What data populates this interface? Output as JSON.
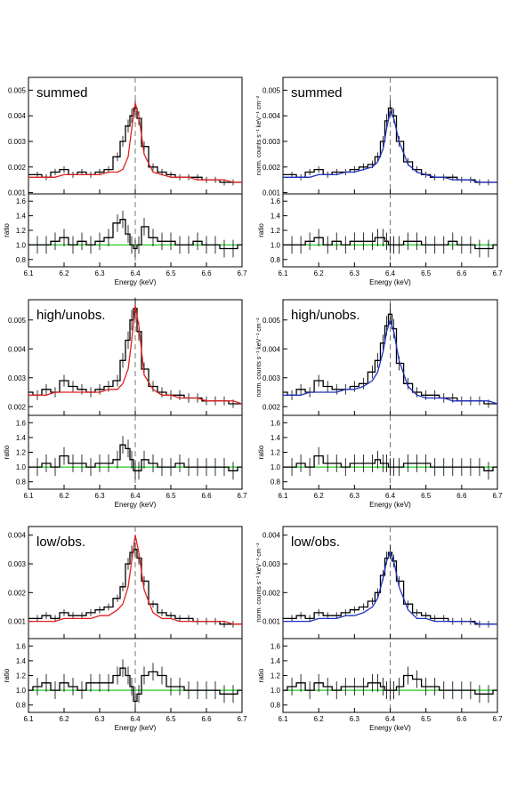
{
  "figure": {
    "x_axis": {
      "label": "Energy (keV)",
      "range": [
        6.1,
        6.7
      ],
      "ticks": [
        "6.1",
        "6.2",
        "6.3",
        "6.4",
        "6.5",
        "6.6",
        "6.7"
      ]
    },
    "ratio_axis": {
      "label": "ratio",
      "range": [
        0.7,
        1.7
      ],
      "ticks": [
        "0.8",
        "1.0",
        "1.2",
        "1.4",
        "1.6"
      ]
    },
    "right_ylabel": "norm. counts s⁻¹ keV⁻¹ cm⁻²",
    "colors": {
      "data": "#000000",
      "left_model": "#e02020",
      "right_model": "#2030c0",
      "ratio_unity": "#22cc22",
      "line_marker": "#777777"
    }
  },
  "chart_data": [
    {
      "type": "line",
      "title": "summed",
      "panel": "row1-left",
      "model_color": "red",
      "x": [
        6.1,
        6.125,
        6.15,
        6.175,
        6.2,
        6.225,
        6.25,
        6.275,
        6.3,
        6.325,
        6.35,
        6.365,
        6.38,
        6.39,
        6.4,
        6.41,
        6.425,
        6.45,
        6.475,
        6.5,
        6.525,
        6.55,
        6.575,
        6.6,
        6.625,
        6.65,
        6.675,
        6.7
      ],
      "series": [
        {
          "values": [
            0.0017,
            0.0017,
            0.0016,
            0.0018,
            0.0019,
            0.0017,
            0.0018,
            0.0017,
            0.0018,
            0.0019,
            0.0024,
            0.003,
            0.0036,
            0.004,
            0.0043,
            0.0039,
            0.0028,
            0.002,
            0.0018,
            0.0017,
            0.0016,
            0.0016,
            0.0016,
            0.0015,
            0.0015,
            0.0014,
            0.0014,
            0.0014
          ]
        },
        {
          "values": [
            0.0016,
            0.0016,
            0.0016,
            0.0016,
            0.0017,
            0.0017,
            0.0017,
            0.0017,
            0.0017,
            0.0018,
            0.0018,
            0.0019,
            0.0024,
            0.0035,
            0.0045,
            0.004,
            0.0025,
            0.0018,
            0.0017,
            0.0016,
            0.0016,
            0.0016,
            0.0015,
            0.0015,
            0.0015,
            0.0015,
            0.0014,
            0.0014
          ]
        }
      ],
      "ratio": [
        1.0,
        1.0,
        1.0,
        1.05,
        1.1,
        1.0,
        1.05,
        1.0,
        1.05,
        1.1,
        1.3,
        1.35,
        1.15,
        1.0,
        0.95,
        1.0,
        1.25,
        1.1,
        1.05,
        1.05,
        1.0,
        1.0,
        1.05,
        1.0,
        1.0,
        0.95,
        0.95,
        1.0
      ],
      "ylim": [
        0.00095,
        0.0055
      ],
      "yticks": [
        "0.001",
        "0.002",
        "0.003",
        "0.004",
        "0.005"
      ]
    },
    {
      "type": "line",
      "title": "summed",
      "panel": "row1-right",
      "model_color": "blue",
      "x": [
        6.1,
        6.125,
        6.15,
        6.175,
        6.2,
        6.225,
        6.25,
        6.275,
        6.3,
        6.325,
        6.35,
        6.365,
        6.38,
        6.39,
        6.4,
        6.41,
        6.425,
        6.45,
        6.475,
        6.5,
        6.525,
        6.55,
        6.575,
        6.6,
        6.625,
        6.65,
        6.675,
        6.7
      ],
      "series": [
        {
          "values": [
            0.0017,
            0.0017,
            0.0016,
            0.0018,
            0.0019,
            0.0017,
            0.0018,
            0.0018,
            0.0019,
            0.002,
            0.0021,
            0.0024,
            0.003,
            0.0038,
            0.0043,
            0.004,
            0.003,
            0.0022,
            0.0019,
            0.0017,
            0.0016,
            0.0016,
            0.0016,
            0.0015,
            0.0015,
            0.0014,
            0.0014,
            0.0014
          ]
        },
        {
          "values": [
            0.0016,
            0.0016,
            0.0016,
            0.0016,
            0.0017,
            0.0017,
            0.0017,
            0.0018,
            0.0018,
            0.0019,
            0.002,
            0.0022,
            0.0027,
            0.0035,
            0.0042,
            0.0039,
            0.003,
            0.0021,
            0.0018,
            0.0017,
            0.0016,
            0.0016,
            0.0015,
            0.0015,
            0.0015,
            0.0014,
            0.0014,
            0.0014
          ]
        }
      ],
      "ratio": [
        1.0,
        1.0,
        1.0,
        1.05,
        1.1,
        1.0,
        1.05,
        1.0,
        1.05,
        1.05,
        1.05,
        1.1,
        1.1,
        1.05,
        1.0,
        1.0,
        1.0,
        1.05,
        1.05,
        1.0,
        1.0,
        1.0,
        1.05,
        1.0,
        1.0,
        0.95,
        0.95,
        1.0
      ],
      "ylim": [
        0.00095,
        0.0055
      ],
      "yticks": [
        "0.001",
        "0.002",
        "0.003",
        "0.004",
        "0.005"
      ]
    },
    {
      "type": "line",
      "title": "high/unobs.",
      "panel": "row2-left",
      "model_color": "red",
      "x": [
        6.1,
        6.125,
        6.15,
        6.175,
        6.2,
        6.225,
        6.25,
        6.275,
        6.3,
        6.325,
        6.35,
        6.365,
        6.38,
        6.39,
        6.4,
        6.41,
        6.425,
        6.45,
        6.475,
        6.5,
        6.525,
        6.55,
        6.575,
        6.6,
        6.625,
        6.65,
        6.675,
        6.7
      ],
      "series": [
        {
          "values": [
            0.0025,
            0.0024,
            0.0026,
            0.0025,
            0.0029,
            0.0027,
            0.0026,
            0.0025,
            0.0026,
            0.0027,
            0.0029,
            0.0036,
            0.0043,
            0.005,
            0.0054,
            0.0046,
            0.0033,
            0.0027,
            0.0025,
            0.0024,
            0.0024,
            0.0023,
            0.0023,
            0.0022,
            0.0022,
            0.0022,
            0.0021,
            0.0021
          ]
        },
        {
          "values": [
            0.0024,
            0.0024,
            0.0024,
            0.0025,
            0.0025,
            0.0025,
            0.0025,
            0.0025,
            0.0025,
            0.0026,
            0.0026,
            0.0028,
            0.0033,
            0.0043,
            0.0055,
            0.0048,
            0.0031,
            0.0026,
            0.0024,
            0.0024,
            0.0023,
            0.0023,
            0.0023,
            0.0022,
            0.0022,
            0.0022,
            0.0022,
            0.0021
          ]
        }
      ],
      "ratio": [
        1.0,
        1.0,
        1.05,
        1.0,
        1.15,
        1.05,
        1.05,
        1.0,
        1.05,
        1.05,
        1.1,
        1.3,
        1.25,
        1.1,
        0.95,
        0.95,
        1.1,
        1.05,
        1.0,
        1.0,
        1.05,
        1.0,
        1.0,
        1.0,
        1.0,
        1.0,
        0.95,
        1.0
      ],
      "ylim": [
        0.0017,
        0.0057
      ],
      "yticks": [
        "0.002",
        "0.003",
        "0.004",
        "0.005"
      ]
    },
    {
      "type": "line",
      "title": "high/unobs.",
      "panel": "row2-right",
      "model_color": "blue",
      "x": [
        6.1,
        6.125,
        6.15,
        6.175,
        6.2,
        6.225,
        6.25,
        6.275,
        6.3,
        6.325,
        6.35,
        6.365,
        6.38,
        6.39,
        6.4,
        6.41,
        6.425,
        6.45,
        6.475,
        6.5,
        6.525,
        6.55,
        6.575,
        6.6,
        6.625,
        6.65,
        6.675,
        6.7
      ],
      "series": [
        {
          "values": [
            0.0025,
            0.0024,
            0.0026,
            0.0025,
            0.0029,
            0.0027,
            0.0026,
            0.0026,
            0.0027,
            0.0028,
            0.0032,
            0.0036,
            0.0042,
            0.0048,
            0.0052,
            0.0047,
            0.0035,
            0.0028,
            0.0025,
            0.0024,
            0.0024,
            0.0023,
            0.0023,
            0.0022,
            0.0022,
            0.0022,
            0.0021,
            0.0021
          ]
        },
        {
          "values": [
            0.0024,
            0.0024,
            0.0024,
            0.0025,
            0.0025,
            0.0025,
            0.0025,
            0.0026,
            0.0026,
            0.0027,
            0.0029,
            0.0032,
            0.0039,
            0.0046,
            0.005,
            0.0046,
            0.0036,
            0.0027,
            0.0024,
            0.0023,
            0.0023,
            0.0023,
            0.0022,
            0.0022,
            0.0022,
            0.0022,
            0.0022,
            0.0021
          ]
        }
      ],
      "ratio": [
        1.0,
        1.0,
        1.05,
        1.0,
        1.15,
        1.05,
        1.05,
        1.0,
        1.05,
        1.05,
        1.05,
        1.1,
        1.05,
        1.05,
        1.0,
        1.0,
        1.0,
        1.05,
        1.05,
        1.05,
        1.0,
        1.0,
        1.0,
        1.0,
        1.0,
        1.0,
        0.95,
        1.0
      ],
      "ylim": [
        0.0017,
        0.0057
      ],
      "yticks": [
        "0.002",
        "0.003",
        "0.004",
        "0.005"
      ]
    },
    {
      "type": "line",
      "title": "low/obs.",
      "panel": "row3-left",
      "model_color": "red",
      "x": [
        6.1,
        6.125,
        6.15,
        6.175,
        6.2,
        6.225,
        6.25,
        6.275,
        6.3,
        6.325,
        6.35,
        6.365,
        6.38,
        6.39,
        6.4,
        6.41,
        6.425,
        6.45,
        6.475,
        6.5,
        6.525,
        6.55,
        6.575,
        6.6,
        6.625,
        6.65,
        6.675,
        6.7
      ],
      "series": [
        {
          "values": [
            0.0011,
            0.0011,
            0.0012,
            0.0011,
            0.0013,
            0.0012,
            0.0012,
            0.0013,
            0.0014,
            0.0015,
            0.0018,
            0.0022,
            0.003,
            0.0034,
            0.0035,
            0.0032,
            0.0024,
            0.0016,
            0.0013,
            0.0012,
            0.0011,
            0.0011,
            0.001,
            0.001,
            0.001,
            0.0009,
            0.0009,
            0.0009
          ]
        },
        {
          "values": [
            0.001,
            0.001,
            0.001,
            0.001,
            0.0011,
            0.0011,
            0.0011,
            0.0011,
            0.0012,
            0.0012,
            0.0014,
            0.0016,
            0.0022,
            0.0031,
            0.004,
            0.0034,
            0.0021,
            0.0013,
            0.0011,
            0.0011,
            0.001,
            0.001,
            0.001,
            0.001,
            0.001,
            0.001,
            0.0009,
            0.0009
          ]
        }
      ],
      "ratio": [
        1.0,
        1.05,
        1.1,
        1.0,
        1.1,
        1.05,
        1.0,
        1.1,
        1.1,
        1.1,
        1.2,
        1.3,
        1.2,
        1.05,
        0.85,
        0.95,
        1.2,
        1.25,
        1.2,
        1.05,
        1.05,
        1.0,
        1.0,
        1.0,
        1.0,
        0.95,
        0.95,
        1.0
      ],
      "ylim": [
        0.0004,
        0.0043
      ],
      "yticks": [
        "0.001",
        "0.002",
        "0.003",
        "0.004"
      ]
    },
    {
      "type": "line",
      "title": "low/obs.",
      "panel": "row3-right",
      "model_color": "blue",
      "x": [
        6.1,
        6.125,
        6.15,
        6.175,
        6.2,
        6.225,
        6.25,
        6.275,
        6.3,
        6.325,
        6.35,
        6.365,
        6.38,
        6.39,
        6.4,
        6.41,
        6.425,
        6.45,
        6.475,
        6.5,
        6.525,
        6.55,
        6.575,
        6.6,
        6.625,
        6.65,
        6.675,
        6.7
      ],
      "series": [
        {
          "values": [
            0.0011,
            0.0011,
            0.0012,
            0.0011,
            0.0013,
            0.0012,
            0.0012,
            0.0013,
            0.0014,
            0.0015,
            0.0017,
            0.002,
            0.0026,
            0.0032,
            0.0034,
            0.0031,
            0.0024,
            0.0016,
            0.0013,
            0.0012,
            0.0011,
            0.0011,
            0.001,
            0.001,
            0.001,
            0.0009,
            0.0009,
            0.0009
          ]
        },
        {
          "values": [
            0.001,
            0.001,
            0.001,
            0.001,
            0.0011,
            0.0011,
            0.0011,
            0.0012,
            0.0012,
            0.0013,
            0.0015,
            0.0018,
            0.0025,
            0.0031,
            0.0034,
            0.0031,
            0.0022,
            0.0014,
            0.0011,
            0.0011,
            0.001,
            0.001,
            0.001,
            0.001,
            0.001,
            0.0009,
            0.0009,
            0.0009
          ]
        }
      ],
      "ratio": [
        1.0,
        1.05,
        1.1,
        1.0,
        1.1,
        1.05,
        1.0,
        1.05,
        1.05,
        1.05,
        1.1,
        1.1,
        1.05,
        1.0,
        1.0,
        1.0,
        1.05,
        1.2,
        1.15,
        1.05,
        1.05,
        1.0,
        1.0,
        1.0,
        1.0,
        0.95,
        0.95,
        1.0
      ],
      "ylim": [
        0.0004,
        0.0043
      ],
      "yticks": [
        "0.001",
        "0.002",
        "0.003",
        "0.004"
      ]
    }
  ]
}
